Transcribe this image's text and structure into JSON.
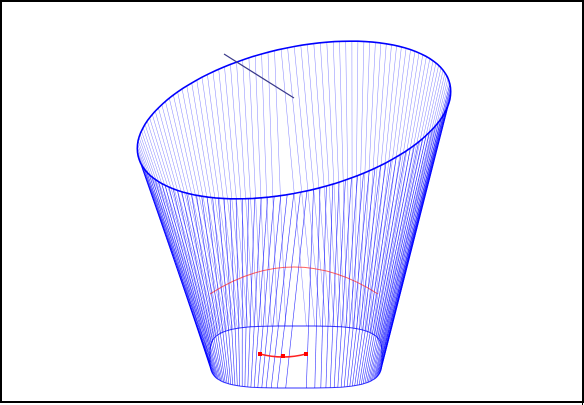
{
  "viewport": {
    "background": "#ffffff",
    "border_color": "#000000"
  },
  "model": {
    "shape": "tapered-cup-wireframe",
    "mesh_color": "#0000ff",
    "section_curve_color": "#ff2020",
    "vertex_marker_color": "#ff0000",
    "axis_line_color": "#3a3a8a"
  }
}
